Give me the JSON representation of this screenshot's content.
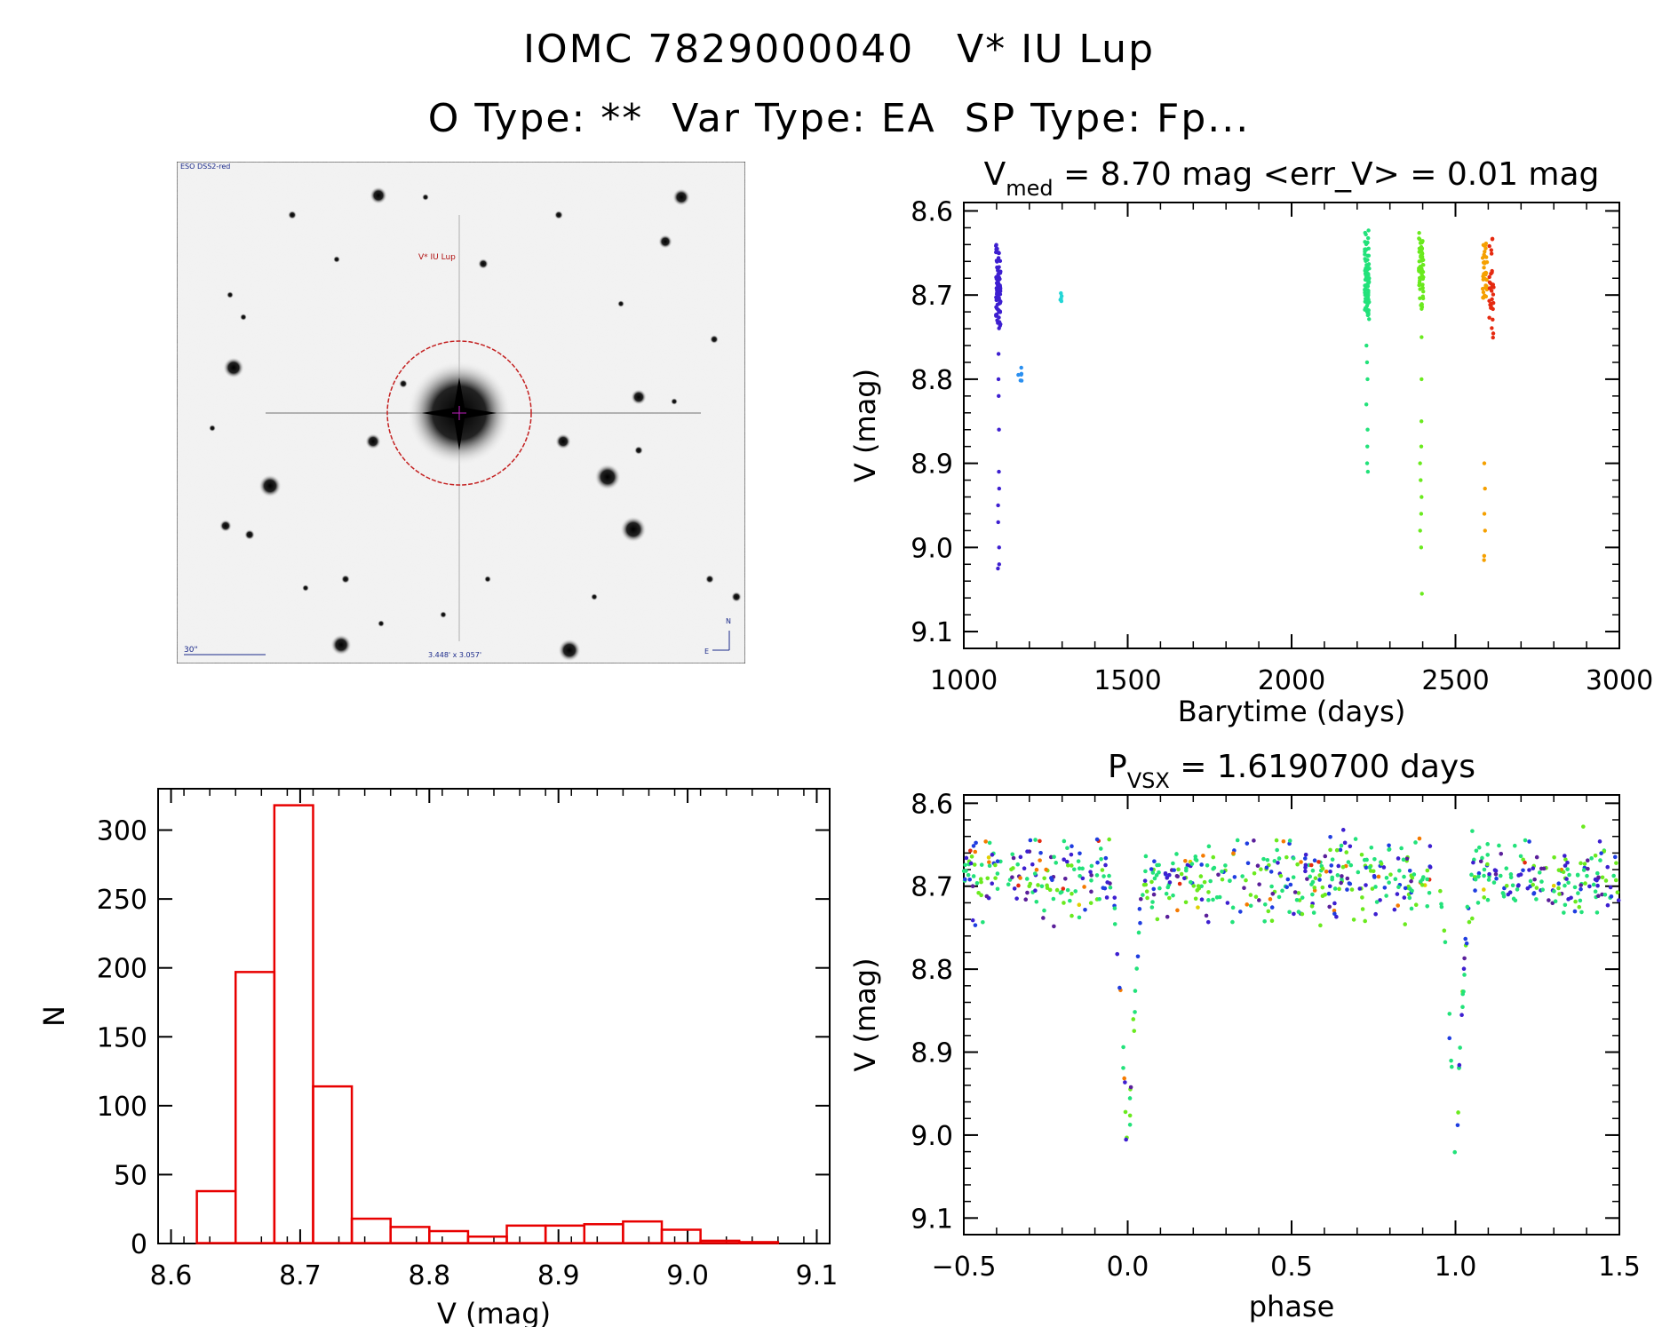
{
  "header": {
    "line1": "IOMC 7829000040   V* IU Lup",
    "line2": "O Type: **  Var Type: EA  SP Type: Fp..."
  },
  "image_panel": {
    "survey_label": "ESO DSS2-red",
    "target_label": "V* IU Lup",
    "scale_label": "30\"",
    "fov_label": "3.448' x 3.057'",
    "compass_n": "N",
    "compass_e": "E"
  },
  "chart_data": [
    {
      "id": "lightcurve",
      "type": "scatter",
      "title_main": "V",
      "title_sub": "med",
      "title_rest": " = 8.70 mag <err_V> = 0.01 mag",
      "xlabel": "Barytime (days)",
      "ylabel": "V (mag)",
      "xlim": [
        1000,
        3000
      ],
      "ylim": [
        9.12,
        8.59
      ],
      "xticks": [
        "1000",
        "1500",
        "2000",
        "2500",
        "3000"
      ],
      "yticks": [
        "8.6",
        "8.7",
        "8.8",
        "8.9",
        "9.0",
        "9.1"
      ],
      "series": [
        {
          "color": "#3d1fd0",
          "x": 1105,
          "range": [
            8.63,
            8.75
          ],
          "dense": 90,
          "extra": [
            8.77,
            8.8,
            8.82,
            8.86,
            8.91,
            8.93,
            8.95,
            8.97,
            9.0,
            9.02,
            9.025
          ]
        },
        {
          "color": "#2a8ff0",
          "x": 1170,
          "range": [
            8.78,
            8.81
          ],
          "dense": 6,
          "extra": []
        },
        {
          "color": "#22d6d6",
          "x": 1300,
          "range": [
            8.69,
            8.71
          ],
          "dense": 5,
          "extra": []
        },
        {
          "color": "#22e27a",
          "x": 2230,
          "range": [
            8.62,
            8.74
          ],
          "dense": 80,
          "extra": [
            8.76,
            8.78,
            8.8,
            8.83,
            8.86,
            8.88,
            8.9,
            8.91
          ]
        },
        {
          "color": "#6aea1e",
          "x": 2395,
          "range": [
            8.62,
            8.72
          ],
          "dense": 60,
          "extra": [
            8.75,
            8.8,
            8.85,
            8.88,
            8.9,
            8.92,
            8.94,
            8.96,
            8.98,
            9.0,
            9.055
          ]
        },
        {
          "color": "#f5a000",
          "x": 2590,
          "range": [
            8.63,
            8.72
          ],
          "dense": 35,
          "extra": [
            8.9,
            8.93,
            8.96,
            8.98,
            9.01,
            9.015
          ]
        },
        {
          "color": "#e52a10",
          "x": 2610,
          "range": [
            8.63,
            8.76
          ],
          "dense": 30,
          "extra": []
        }
      ]
    },
    {
      "id": "phased",
      "type": "scatter",
      "title_main": "P",
      "title_sub": "VSX",
      "title_rest": " = 1.6190700 days",
      "xlabel": "phase",
      "ylabel": "V (mag)",
      "xlim": [
        -0.5,
        1.5
      ],
      "ylim": [
        9.12,
        8.59
      ],
      "xticks": [
        "−0.5",
        "0.0",
        "0.5",
        "1.0",
        "1.5"
      ],
      "yticks": [
        "8.6",
        "8.7",
        "8.8",
        "8.9",
        "9.0",
        "9.1"
      ],
      "eclipses": [
        0.0,
        1.0
      ],
      "eclipse_depth_mag": 9.04,
      "baseline_mag": 8.69,
      "colors": [
        "#22e27a",
        "#6aea1e",
        "#3d1fd0",
        "#1f3de0",
        "#5a1f9a",
        "#f57a00",
        "#e52a10",
        "#e0d000"
      ]
    },
    {
      "id": "histogram",
      "type": "bar",
      "xlabel": "V (mag)",
      "ylabel": "N",
      "xlim": [
        8.59,
        9.11
      ],
      "ylim": [
        0,
        330
      ],
      "xticks": [
        "8.6",
        "8.7",
        "8.8",
        "8.9",
        "9.0",
        "9.1"
      ],
      "yticks": [
        "0",
        "50",
        "100",
        "150",
        "200",
        "250",
        "300"
      ],
      "bin_edges": [
        8.62,
        8.65,
        8.68,
        8.71,
        8.74,
        8.77,
        8.8,
        8.83,
        8.86,
        8.89,
        8.92,
        8.95,
        8.98,
        9.01,
        9.04,
        9.07
      ],
      "values": [
        38,
        197,
        318,
        114,
        18,
        12,
        9,
        5,
        13,
        13,
        14,
        16,
        10,
        2,
        1
      ],
      "color": "#e80000"
    }
  ]
}
